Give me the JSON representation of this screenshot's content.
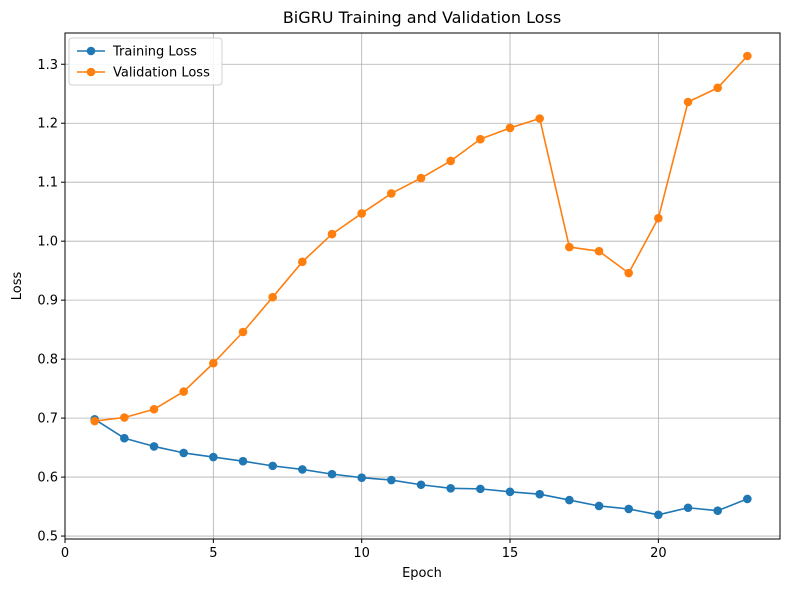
{
  "chart_data": {
    "type": "line",
    "title": "BiGRU Training and Validation Loss",
    "xlabel": "Epoch",
    "ylabel": "Loss",
    "xlim": [
      0,
      24.1
    ],
    "ylim": [
      0.495,
      1.353
    ],
    "x_ticks": [
      0,
      5,
      10,
      15,
      20
    ],
    "y_ticks": [
      0.5,
      0.6,
      0.7,
      0.8,
      0.9,
      1.0,
      1.1,
      1.2,
      1.3
    ],
    "y_tick_labels": [
      "0.5",
      "0.6",
      "0.7",
      "0.8",
      "0.9",
      "1.0",
      "1.1",
      "1.2",
      "1.3"
    ],
    "grid": true,
    "legend_position": "top-left",
    "x": [
      1,
      2,
      3,
      4,
      5,
      6,
      7,
      8,
      9,
      10,
      11,
      12,
      13,
      14,
      15,
      16,
      17,
      18,
      19,
      20,
      21,
      22,
      23
    ],
    "series": [
      {
        "name": "Training Loss",
        "color": "#1f77b4",
        "values": [
          0.698,
          0.666,
          0.652,
          0.641,
          0.634,
          0.627,
          0.619,
          0.613,
          0.605,
          0.599,
          0.595,
          0.587,
          0.581,
          0.58,
          0.575,
          0.571,
          0.561,
          0.551,
          0.546,
          0.536,
          0.548,
          0.543,
          0.563
        ]
      },
      {
        "name": "Validation Loss",
        "color": "#ff7f0e",
        "values": [
          0.695,
          0.701,
          0.715,
          0.745,
          0.793,
          0.846,
          0.905,
          0.965,
          1.012,
          1.047,
          1.081,
          1.107,
          1.136,
          1.173,
          1.192,
          1.208,
          0.99,
          0.983,
          0.946,
          1.039,
          1.236,
          1.26,
          1.314
        ]
      }
    ]
  }
}
